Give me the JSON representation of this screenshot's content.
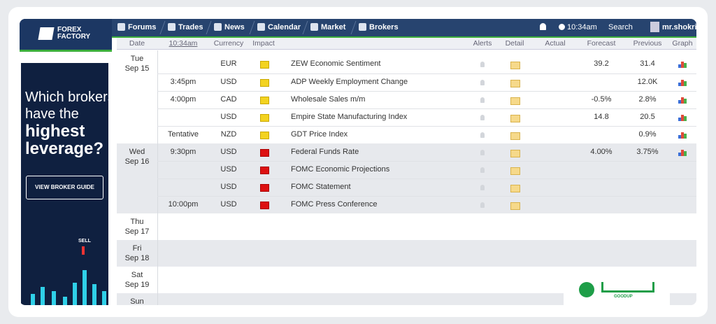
{
  "header": {
    "logo": [
      "FOREX",
      "FACTORY"
    ],
    "nav": [
      "Forums",
      "Trades",
      "News",
      "Calendar",
      "Market",
      "Brokers"
    ],
    "time": "10:34am",
    "search": "Search",
    "user": "mr.shokri"
  },
  "ad": {
    "lines": [
      "Which brokers",
      "have the",
      "highest",
      "leverage?"
    ],
    "button": "VIEW BROKER GUIDE",
    "signal": "SELL"
  },
  "table": {
    "columns": [
      "Date",
      "10:34am",
      "Currency",
      "Impact",
      "Alerts",
      "Detail",
      "Actual",
      "Forecast",
      "Previous",
      "Graph"
    ],
    "days": [
      {
        "day": "Tue",
        "date": "Sep 15",
        "events": [
          {
            "currency": "EUR",
            "impact": "yellow",
            "event": "ZEW Economic Sentiment",
            "forecast": "39.2",
            "previous": "31.4"
          },
          {
            "time": "3:45pm",
            "currency": "USD",
            "impact": "yellow",
            "event": "ADP Weekly Employment Change",
            "previous": "12.0K"
          },
          {
            "time": "4:00pm",
            "currency": "CAD",
            "impact": "yellow",
            "event": "Wholesale Sales m/m",
            "forecast": "-0.5%",
            "previous": "2.8%"
          },
          {
            "currency": "USD",
            "impact": "yellow",
            "event": "Empire State Manufacturing Index",
            "forecast": "14.8",
            "previous": "20.5"
          },
          {
            "time": "Tentative",
            "currency": "NZD",
            "impact": "yellow",
            "event": "GDT Price Index",
            "previous": "0.9%"
          }
        ]
      },
      {
        "day": "Wed",
        "date": "Sep 16",
        "events": [
          {
            "time": "9:30pm",
            "currency": "USD",
            "impact": "red",
            "event": "Federal Funds Rate",
            "forecast": "4.00%",
            "previous": "3.75%"
          },
          {
            "currency": "USD",
            "impact": "red",
            "event": "FOMC Economic Projections"
          },
          {
            "currency": "USD",
            "impact": "red",
            "event": "FOMC Statement"
          },
          {
            "time": "10:00pm",
            "currency": "USD",
            "impact": "red",
            "event": "FOMC Press Conference"
          }
        ]
      },
      {
        "day": "Thu",
        "date": "Sep 17"
      },
      {
        "day": "Fri",
        "date": "Sep 18"
      },
      {
        "day": "Sat",
        "date": "Sep 19"
      },
      {
        "day": "Sun"
      }
    ]
  },
  "watermark": "GOODUP"
}
